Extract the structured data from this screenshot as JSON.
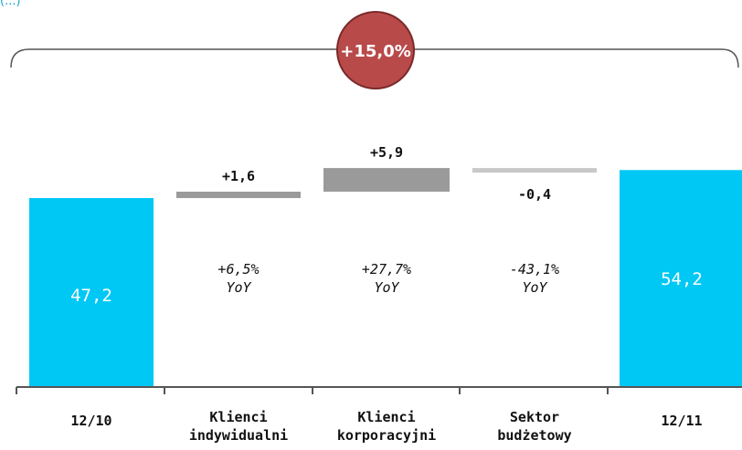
{
  "chart_data": {
    "type": "bar",
    "subtype": "waterfall",
    "categories": [
      "12/10",
      "Klienci\nindywidualni",
      "Klienci\nkorporacyjni",
      "Sektor\nbudżetowy",
      "12/11"
    ],
    "values": [
      47.2,
      1.6,
      5.9,
      -0.4,
      54.2
    ],
    "value_labels": [
      "47,2",
      "+1,6",
      "+5,9",
      "-0,4",
      "54,2"
    ],
    "yoy_labels": [
      "",
      "+6,5%\nYoY",
      "+27,7%\nYoY",
      "-43,1%\nYoY",
      ""
    ],
    "total_change_label": "+15,0%",
    "top_left_fragment": "(...)",
    "colors": {
      "total_bar": "#00c8f5",
      "increase_bar": "#9a9a9a",
      "decrease_bar": "#c8c8c8",
      "badge_fill": "#b84a4a",
      "badge_stroke": "#7a2a2a",
      "axis": "#555555"
    },
    "legend": "none",
    "grid": false
  }
}
